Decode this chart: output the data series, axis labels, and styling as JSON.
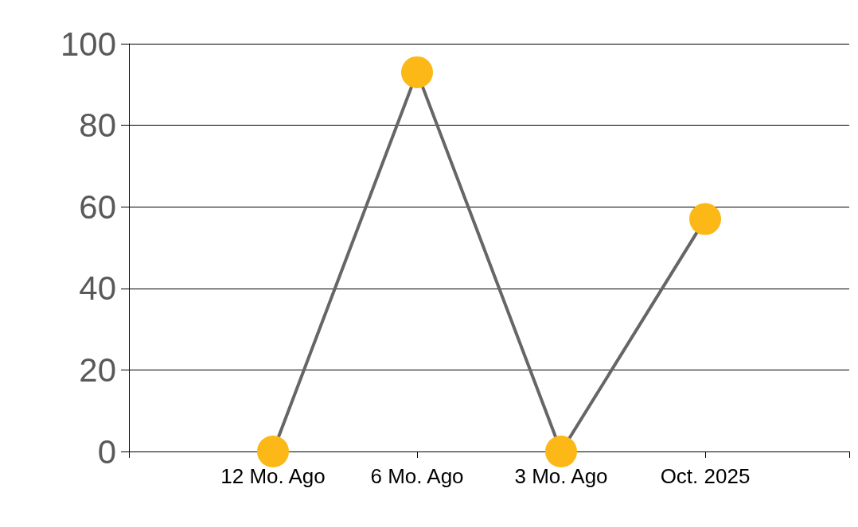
{
  "chart_data": {
    "type": "line",
    "categories": [
      null,
      "12 Mo. Ago",
      "6 Mo. Ago",
      "3 Mo. Ago",
      "Oct. 2025",
      null
    ],
    "series": [
      {
        "color": "#666666",
        "colors": [
          null,
          "#fbb817",
          "#fbb817",
          "#fbb817",
          "#fbb817",
          null
        ],
        "values": [
          null,
          0,
          93,
          0,
          57,
          null
        ]
      }
    ],
    "ylim": [
      0,
      100
    ],
    "yticks": [
      0,
      20,
      40,
      60,
      80,
      100
    ],
    "grid": "y",
    "marker": "circle",
    "line_style": "solid"
  }
}
